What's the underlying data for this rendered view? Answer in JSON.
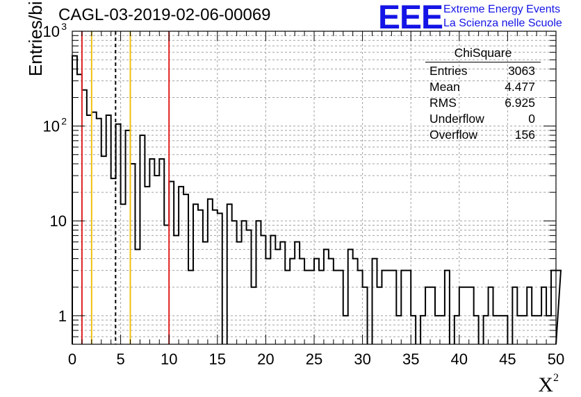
{
  "chart_data": {
    "type": "histogram",
    "title": "CAGL-03-2019-02-06-00069",
    "xlabel": "X",
    "xlabel_sup": "2",
    "ylabel": "Entries/bin",
    "yscale": "log",
    "xlim": [
      0,
      50
    ],
    "ylim": [
      0.5,
      1000
    ],
    "grid": true,
    "bin_width": 0.5,
    "values": [
      550,
      350,
      240,
      130,
      140,
      120,
      48,
      130,
      28,
      105,
      15,
      90,
      40,
      5,
      80,
      23,
      45,
      30,
      45,
      9,
      26,
      7,
      23,
      19,
      3,
      15,
      13,
      6,
      17,
      13,
      12,
      0,
      15,
      10,
      6,
      10,
      8,
      2,
      10,
      7,
      4,
      7,
      5,
      6,
      3,
      4,
      6,
      4,
      3,
      3,
      4,
      3,
      5,
      4,
      3,
      3,
      1,
      5,
      4,
      3,
      2,
      0,
      4,
      2,
      3,
      3,
      3,
      1,
      3,
      3,
      1,
      0,
      1,
      2,
      2,
      1,
      1,
      3,
      0,
      1,
      2,
      2,
      2,
      1,
      0,
      1,
      2,
      1,
      1,
      1,
      0,
      2,
      1,
      1,
      2,
      1,
      1,
      2,
      1,
      3,
      3
    ],
    "vlines": [
      {
        "x": 1,
        "color": "#e02020",
        "style": "solid"
      },
      {
        "x": 2,
        "color": "#f0c010",
        "style": "solid"
      },
      {
        "x": 4.477,
        "color": "#000000",
        "style": "dashed"
      },
      {
        "x": 6,
        "color": "#f0c010",
        "style": "solid"
      },
      {
        "x": 10,
        "color": "#e02020",
        "style": "solid"
      }
    ],
    "x_ticks": [
      "0",
      "5",
      "10",
      "15",
      "20",
      "25",
      "30",
      "35",
      "40",
      "45",
      "50"
    ],
    "y_tick_labels": [
      {
        "value": 1,
        "label": "1"
      },
      {
        "value": 10,
        "label": "10"
      },
      {
        "value": 100,
        "label": "10",
        "sup": "2"
      },
      {
        "value": 1000,
        "label": "10",
        "sup": "3"
      }
    ]
  },
  "logo": {
    "mark": "EEE",
    "line1": "Extreme Energy Events",
    "line2": "La Scienza nelle Scuole"
  },
  "stats": {
    "title": "ChiSquare",
    "rows": [
      {
        "label": "Entries",
        "value": "3063"
      },
      {
        "label": "Mean",
        "value": "4.477"
      },
      {
        "label": "RMS",
        "value": "6.925"
      },
      {
        "label": "Underflow",
        "value": "0"
      },
      {
        "label": "Overflow",
        "value": "156"
      }
    ]
  }
}
